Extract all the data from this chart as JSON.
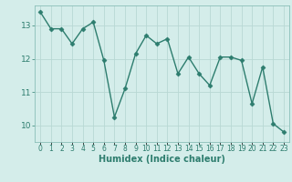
{
  "x": [
    0,
    1,
    2,
    3,
    4,
    5,
    6,
    7,
    8,
    9,
    10,
    11,
    12,
    13,
    14,
    15,
    16,
    17,
    18,
    19,
    20,
    21,
    22,
    23
  ],
  "y": [
    13.4,
    12.9,
    12.9,
    12.45,
    12.9,
    13.1,
    11.95,
    10.25,
    11.1,
    12.15,
    12.7,
    12.45,
    12.6,
    11.55,
    12.05,
    11.55,
    11.2,
    12.05,
    12.05,
    11.95,
    10.65,
    11.75,
    10.05,
    9.8
  ],
  "xlabel": "Humidex (Indice chaleur)",
  "ylim": [
    9.5,
    13.6
  ],
  "xlim": [
    -0.5,
    23.5
  ],
  "yticks": [
    10,
    11,
    12,
    13
  ],
  "line_color": "#2d7d6e",
  "bg_color": "#d4edea",
  "grid_color": "#b8d8d4",
  "marker_size": 2.5,
  "line_width": 1.0
}
